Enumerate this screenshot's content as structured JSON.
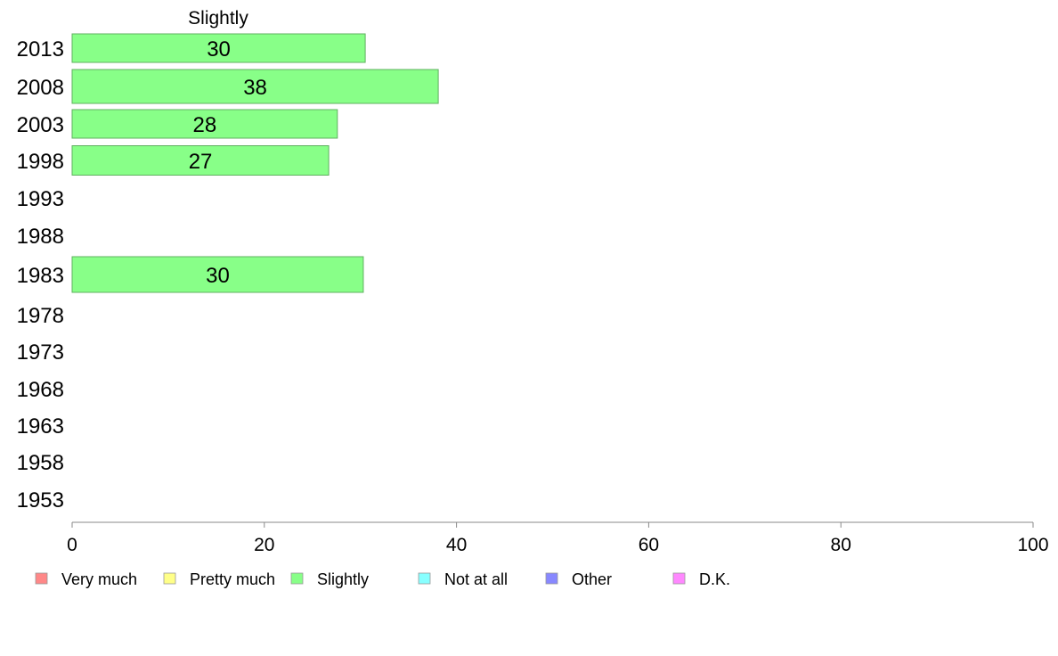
{
  "chart_data": {
    "type": "bar",
    "orientation": "horizontal",
    "series_title": "Slightly",
    "categories": [
      "2013",
      "2008",
      "2003",
      "1998",
      "1993",
      "1988",
      "1983",
      "1978",
      "1973",
      "1968",
      "1963",
      "1958",
      "1953"
    ],
    "series": [
      {
        "name": "Slightly",
        "color": "#88ff88",
        "values": [
          30.5,
          38.1,
          27.6,
          26.7,
          null,
          null,
          30.3,
          null,
          null,
          null,
          null,
          null,
          null
        ],
        "labels": [
          "30",
          "38",
          "28",
          "27",
          "",
          "",
          "30",
          "",
          "",
          "",
          "",
          "",
          ""
        ]
      }
    ],
    "xlim": [
      0,
      100
    ],
    "xticks": [
      0,
      20,
      40,
      60,
      80,
      100
    ],
    "grid": false,
    "legend_position": "bottom",
    "legend": [
      {
        "label": "Very much",
        "color": "#ff8888"
      },
      {
        "label": "Pretty much",
        "color": "#ffff88"
      },
      {
        "label": "Slightly",
        "color": "#88ff88"
      },
      {
        "label": "Not at all",
        "color": "#88ffff"
      },
      {
        "label": "Other",
        "color": "#8888ff"
      },
      {
        "label": "D.K.",
        "color": "#ff88ff"
      }
    ]
  }
}
